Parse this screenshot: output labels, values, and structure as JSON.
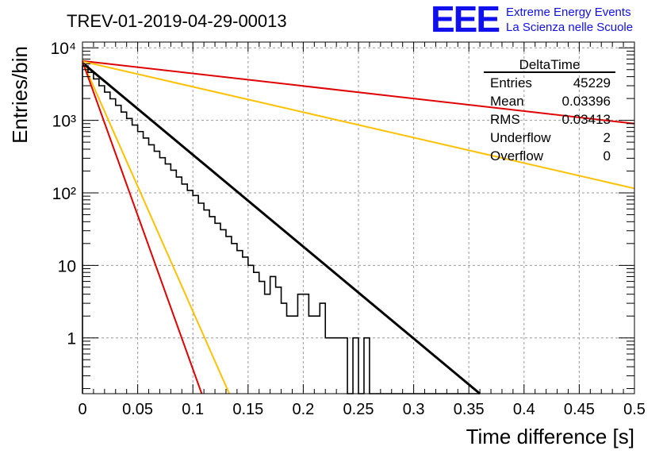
{
  "header": {
    "run_title": "TREV-01-2019-04-29-00013",
    "logo_text": "EEE",
    "org_line1": "Extreme Energy Events",
    "org_line2": "La Scienza nelle Scuole"
  },
  "stats_box": {
    "title": "DeltaTime",
    "rows": [
      {
        "label": "Entries",
        "value": "45229"
      },
      {
        "label": "Mean",
        "value": "0.03396"
      },
      {
        "label": "RMS",
        "value": "0.03413"
      },
      {
        "label": "Underflow",
        "value": "2"
      },
      {
        "label": "Overflow",
        "value": "0"
      }
    ]
  },
  "colors": {
    "histogram": "#000000",
    "fit": "#000000",
    "red": "#e00000",
    "orange": "#ffc000",
    "grid": "#999999"
  },
  "chart_data": {
    "type": "line",
    "title": "TREV-01-2019-04-29-00013",
    "xlabel": "Time difference [s]",
    "ylabel": "Entries/bin",
    "xlim": [
      0,
      0.5
    ],
    "ylim": [
      0.17,
      12000
    ],
    "yscale": "log",
    "grid": true,
    "xticks": [
      0,
      0.05,
      0.1,
      0.15,
      0.2,
      0.25,
      0.3,
      0.35,
      0.4,
      0.45,
      0.5
    ],
    "xtick_labels": [
      "0",
      "0.05",
      "0.1",
      "0.15",
      "0.2",
      "0.25",
      "0.3",
      "0.35",
      "0.4",
      "0.45",
      "0.5"
    ],
    "yticks": [
      1,
      10,
      100,
      1000,
      10000
    ],
    "ytick_labels": [
      "1",
      "10",
      "10²",
      "10³",
      "10⁴"
    ],
    "histogram": {
      "name": "DeltaTime",
      "bin_width": 0.005,
      "bin_start": 0,
      "counts": [
        5620,
        4580,
        3720,
        3000,
        2450,
        1980,
        1610,
        1300,
        1060,
        860,
        700,
        570,
        460,
        375,
        305,
        250,
        205,
        165,
        132,
        108,
        92,
        72,
        58,
        47,
        38,
        31,
        25,
        20,
        16,
        13,
        10,
        8,
        6,
        4,
        7,
        5,
        3,
        2,
        2,
        4,
        4,
        2,
        2,
        3,
        1,
        1,
        1,
        1,
        0,
        1,
        0,
        1,
        0.17,
        0.17,
        0.17,
        0.17,
        0.17,
        0.17,
        0.17,
        0.17,
        0.17,
        0.17,
        0.17,
        0.17,
        0.17,
        0.17,
        0.17,
        0.17,
        0.17,
        0.17,
        0.17,
        0.17
      ]
    },
    "series": [
      {
        "name": "",
        "color": "#000000",
        "x": [
          0,
          0.36
        ],
        "y": [
          6200,
          0.16
        ]
      },
      {
        "name": "",
        "color": "#e00000",
        "x": [
          0,
          0.5
        ],
        "y": [
          6600,
          900
        ]
      },
      {
        "name": "",
        "color": "#ffc000",
        "x": [
          0,
          0.5
        ],
        "y": [
          6500,
          115
        ]
      },
      {
        "name": "",
        "color": "#ffc000",
        "x": [
          0,
          0.133
        ],
        "y": [
          6500,
          0.17
        ]
      },
      {
        "name": "",
        "color": "#e00000",
        "x": [
          0,
          0.108
        ],
        "y": [
          6500,
          0.17
        ]
      }
    ]
  }
}
